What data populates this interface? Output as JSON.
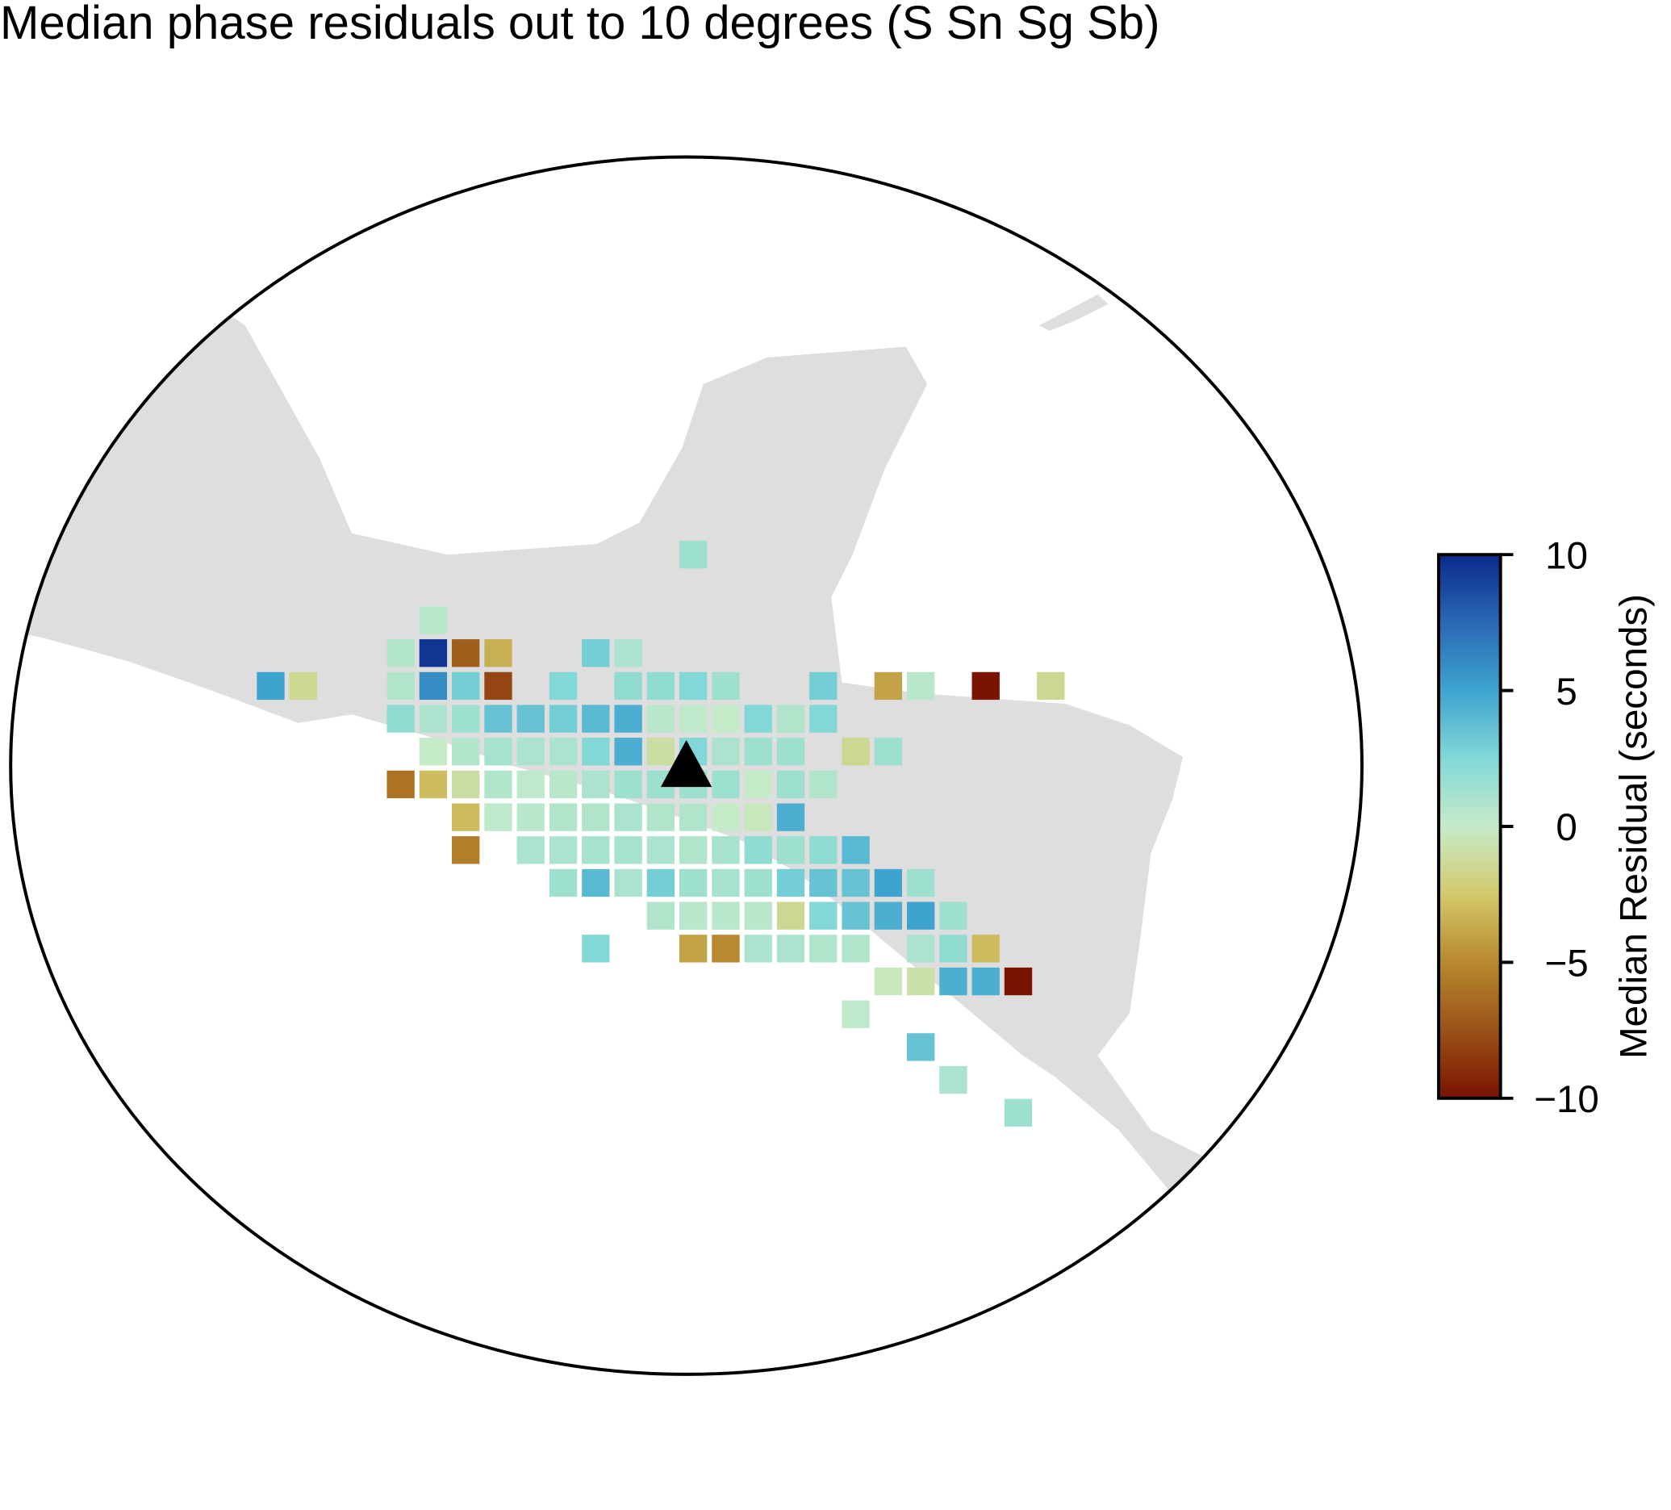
{
  "chart_data": {
    "type": "grid-map",
    "title": "Median phase residuals out to 10 degrees (S Sn Sg Sb)",
    "colorbar_label": "Median Residual (seconds)",
    "clim": [
      -10,
      10
    ],
    "cticks": [
      {
        "value": -10,
        "label": "−10"
      },
      {
        "value": -5,
        "label": "−5"
      },
      0,
      5,
      10
    ],
    "colorscale": [
      "#7a1300",
      "#9a5218",
      "#b8892e",
      "#d4c96c",
      "#c6ebc8",
      "#82d8d6",
      "#3ea4cf",
      "#2a68b4",
      "#0a2a8c"
    ],
    "land_color": "#dedede",
    "values": [
      [
        null,
        null,
        null,
        null,
        null,
        null,
        null,
        null,
        null,
        null,
        null,
        null,
        null,
        1.5,
        null,
        null,
        null,
        null,
        null,
        null,
        null,
        null,
        null,
        null,
        null
      ],
      [
        null,
        null,
        null,
        null,
        null,
        null,
        null,
        null,
        null,
        null,
        null,
        null,
        null,
        null,
        null,
        null,
        null,
        null,
        null,
        null,
        null,
        null,
        null,
        null,
        null
      ],
      [
        null,
        null,
        null,
        null,
        null,
        0.5,
        null,
        null,
        null,
        null,
        null,
        null,
        null,
        null,
        null,
        null,
        null,
        null,
        null,
        null,
        null,
        null,
        null,
        null,
        null
      ],
      [
        null,
        null,
        null,
        null,
        0.8,
        9.5,
        -7,
        -3.5,
        null,
        null,
        3,
        1,
        null,
        null,
        null,
        null,
        null,
        null,
        null,
        null,
        null,
        null,
        null,
        null,
        null
      ],
      [
        5,
        -1.5,
        null,
        null,
        0.8,
        6,
        3,
        -8,
        null,
        2.5,
        null,
        2,
        2,
        2.5,
        1.5,
        null,
        null,
        3,
        null,
        -4,
        0.5,
        null,
        -10,
        null,
        -1.5
      ],
      [
        null,
        null,
        null,
        null,
        2,
        1,
        1.5,
        3.5,
        3.5,
        3,
        4,
        4.5,
        0.5,
        0.3,
        0,
        2.5,
        0.8,
        2.5,
        null,
        null,
        null,
        null,
        null,
        null,
        null
      ],
      [
        null,
        null,
        null,
        null,
        null,
        0,
        0.7,
        1.2,
        1,
        1,
        2.5,
        4.5,
        -1,
        2.5,
        1,
        1.5,
        1.5,
        null,
        -1.5,
        1.5,
        null,
        null,
        null,
        null,
        null
      ],
      [
        null,
        null,
        null,
        null,
        -6,
        -3,
        -1,
        0.8,
        0.3,
        0.5,
        1,
        1.5,
        1.5,
        1.5,
        1.5,
        0,
        1.5,
        0.8,
        null,
        null,
        null,
        null,
        null,
        null,
        null
      ],
      [
        null,
        null,
        null,
        null,
        null,
        null,
        -3,
        0.3,
        0.5,
        0.8,
        0.8,
        1,
        0.8,
        0.8,
        0,
        -0.3,
        4.5,
        null,
        null,
        null,
        null,
        null,
        null,
        null,
        null
      ],
      [
        null,
        null,
        null,
        null,
        null,
        null,
        -5.5,
        null,
        1,
        1,
        1.2,
        1.2,
        1,
        0.8,
        1.2,
        2,
        1.5,
        2,
        4,
        null,
        null,
        null,
        null,
        null,
        null
      ],
      [
        null,
        null,
        null,
        null,
        null,
        null,
        null,
        null,
        null,
        1.5,
        4,
        1,
        3,
        1.5,
        1.2,
        1.5,
        3,
        3.5,
        3.5,
        5,
        1.5,
        null,
        null,
        null,
        null
      ],
      [
        null,
        null,
        null,
        null,
        null,
        null,
        null,
        null,
        null,
        null,
        null,
        null,
        0.8,
        0.5,
        0.5,
        0.5,
        -1.5,
        2.5,
        3.5,
        4.5,
        5,
        1.5,
        null,
        null,
        null
      ],
      [
        null,
        null,
        null,
        null,
        null,
        null,
        null,
        null,
        null,
        null,
        2.5,
        null,
        null,
        -4,
        -5,
        1,
        1,
        0.8,
        0.8,
        null,
        1,
        2,
        -3,
        null,
        null
      ],
      [
        null,
        null,
        null,
        null,
        null,
        null,
        null,
        null,
        null,
        null,
        null,
        null,
        null,
        null,
        null,
        null,
        null,
        null,
        null,
        -0.3,
        -0.8,
        4.5,
        4.5,
        -10,
        null
      ],
      [
        null,
        null,
        null,
        null,
        null,
        null,
        null,
        null,
        null,
        null,
        null,
        null,
        null,
        null,
        null,
        null,
        null,
        null,
        0.3,
        null,
        null,
        null,
        null,
        null,
        null
      ],
      [
        null,
        null,
        null,
        null,
        null,
        null,
        null,
        null,
        null,
        null,
        null,
        null,
        null,
        null,
        null,
        null,
        null,
        null,
        null,
        null,
        3.5,
        null,
        null,
        null,
        null
      ],
      [
        null,
        null,
        null,
        null,
        null,
        null,
        null,
        null,
        null,
        null,
        null,
        null,
        null,
        null,
        null,
        null,
        null,
        null,
        null,
        null,
        null,
        1,
        null,
        null,
        null
      ],
      [
        null,
        null,
        null,
        null,
        null,
        null,
        null,
        null,
        null,
        null,
        null,
        null,
        null,
        null,
        null,
        null,
        null,
        null,
        null,
        null,
        null,
        null,
        null,
        1.5,
        null
      ]
    ]
  }
}
